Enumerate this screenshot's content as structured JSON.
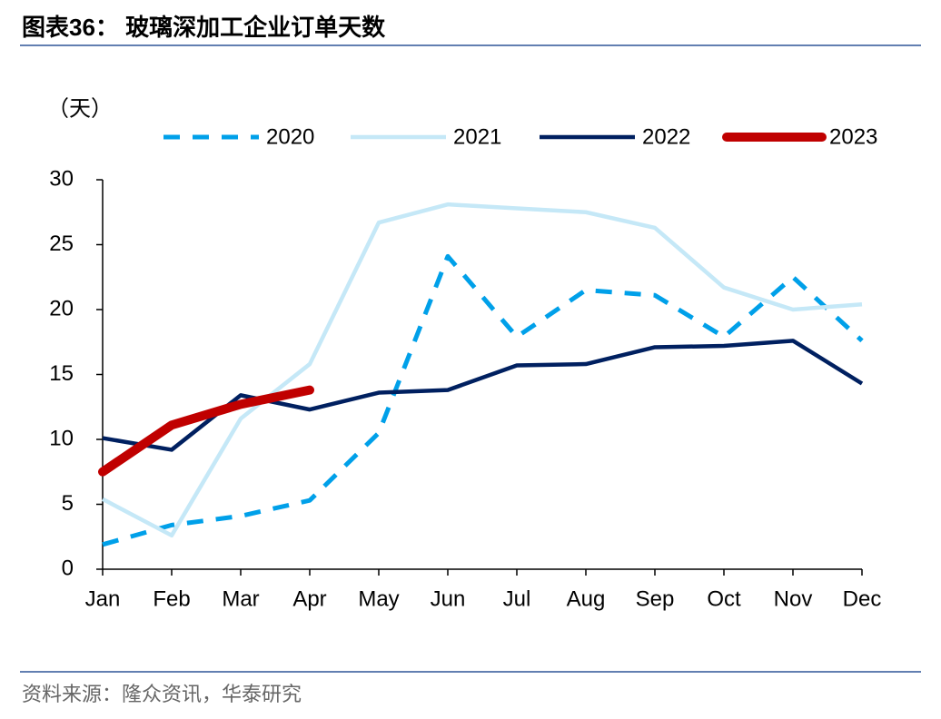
{
  "chart_data": {
    "type": "line",
    "title": "图表36： 玻璃深加工企业订单天数",
    "y_label": "（天）",
    "source": "资料来源：隆众资讯，华泰研究",
    "categories": [
      "Jan",
      "Feb",
      "Mar",
      "Apr",
      "May",
      "Jun",
      "Jul",
      "Aug",
      "Sep",
      "Oct",
      "Nov",
      "Dec"
    ],
    "series": [
      {
        "name": "2020",
        "color": "#00a0e9",
        "style": "dashed",
        "values": [
          1.9,
          3.4,
          4.1,
          5.3,
          10.5,
          24.1,
          17.9,
          21.5,
          21.1,
          17.9,
          22.5,
          17.6
        ]
      },
      {
        "name": "2021",
        "color": "#c5e8f7",
        "style": "solid",
        "values": [
          5.4,
          2.6,
          11.6,
          15.8,
          26.7,
          28.1,
          27.8,
          27.5,
          26.3,
          21.7,
          20.0,
          20.4
        ]
      },
      {
        "name": "2022",
        "color": "#002060",
        "style": "solid",
        "values": [
          10.1,
          9.2,
          13.4,
          12.3,
          13.6,
          13.8,
          15.7,
          15.8,
          17.1,
          17.2,
          17.6,
          14.3
        ]
      },
      {
        "name": "2023",
        "color": "#c00000",
        "style": "thick",
        "values": [
          7.5,
          11.1,
          12.7,
          13.8,
          null,
          null,
          null,
          null,
          null,
          null,
          null,
          null
        ]
      }
    ],
    "ylim": [
      0,
      30
    ],
    "yticks": [
      0,
      5,
      10,
      15,
      20,
      25,
      30
    ],
    "grid": false,
    "legend": "top"
  }
}
